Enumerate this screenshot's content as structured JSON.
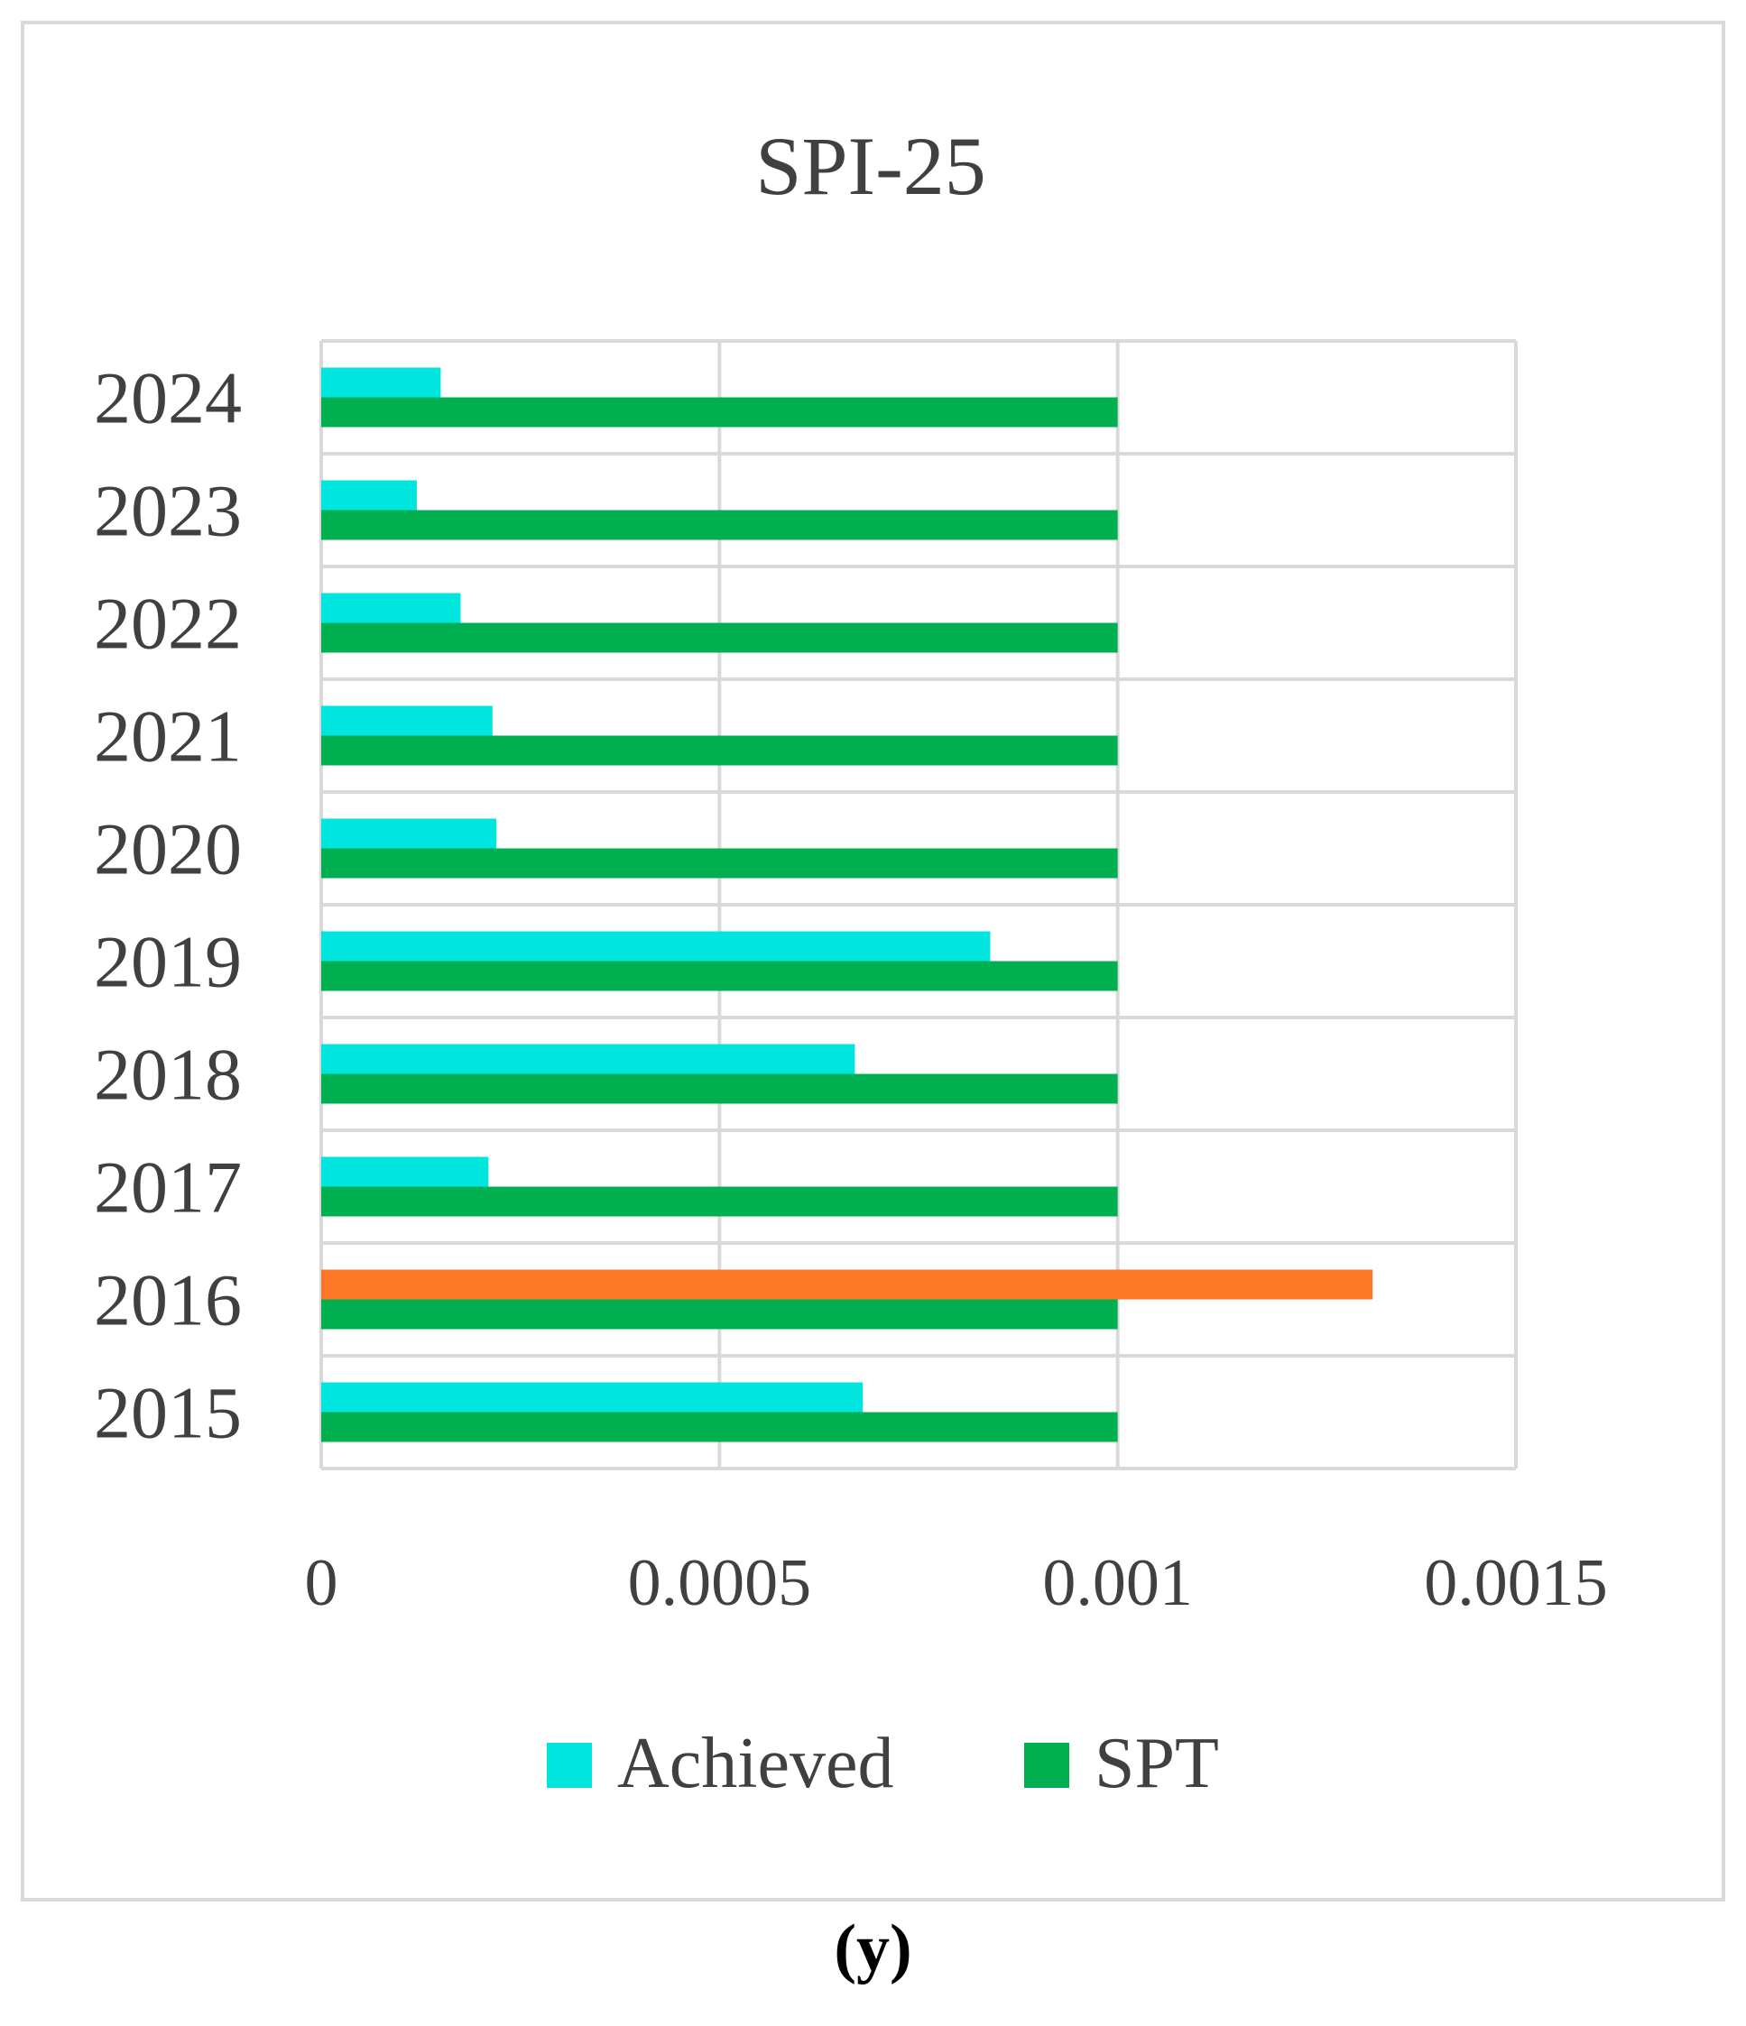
{
  "caption": "(y)",
  "colors": {
    "achieved": "#00e5de",
    "spt": "#00b050",
    "highlight": "#ff7828",
    "grid": "#d9d9d9",
    "text": "#404040"
  },
  "chart_data": {
    "type": "bar",
    "orientation": "horizontal",
    "title": "SPI-25",
    "categories": [
      "2015",
      "2016",
      "2017",
      "2018",
      "2019",
      "2020",
      "2021",
      "2022",
      "2023",
      "2024"
    ],
    "series": [
      {
        "name": "Achieved",
        "color": "#00e5de",
        "values": [
          0.00068,
          0.00132,
          0.00021,
          0.00067,
          0.00084,
          0.00022,
          0.000215,
          0.000175,
          0.00012,
          0.00015
        ],
        "point_colors": {
          "2016": "#ff7828"
        }
      },
      {
        "name": "SPT",
        "color": "#00b050",
        "values": [
          0.001,
          0.001,
          0.001,
          0.001,
          0.001,
          0.001,
          0.001,
          0.001,
          0.001,
          0.001
        ]
      }
    ],
    "xlim": [
      0,
      0.0015
    ],
    "xticks": [
      "0",
      "0.0005",
      "0.001",
      "0.0015"
    ],
    "grid": true,
    "legend": "bottom"
  }
}
